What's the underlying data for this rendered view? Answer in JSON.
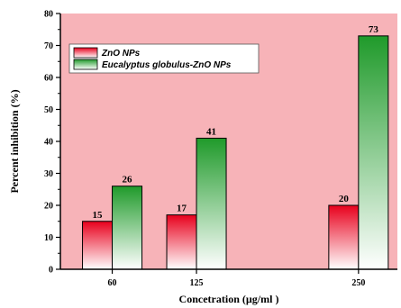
{
  "chart_data": {
    "type": "bar",
    "title": "",
    "xlabel": "Concetration (µg/ml )",
    "ylabel": "Percent inhibition (%)",
    "x": [
      60,
      125,
      250
    ],
    "x_tick_labels": [
      "60",
      "125",
      "250"
    ],
    "xlim": [
      20,
      280
    ],
    "ylim": [
      0,
      80
    ],
    "y_ticks": [
      0,
      10,
      20,
      30,
      40,
      50,
      60,
      70,
      80
    ],
    "grid": false,
    "legend_position": "top-left",
    "plot_background": "#f7b3b8",
    "series": [
      {
        "name": "ZnO NPs",
        "values": [
          15,
          17,
          20
        ],
        "labels": [
          "15",
          "17",
          "20"
        ],
        "color_top": "#e8001c",
        "color_bottom": "#ffffff"
      },
      {
        "name": "Eucalyptus globulus-ZnO NPs",
        "values": [
          26,
          41,
          73
        ],
        "labels": [
          "26",
          "41",
          "73"
        ],
        "color_top": "#1f9a2a",
        "color_bottom": "#ffffff"
      }
    ]
  }
}
